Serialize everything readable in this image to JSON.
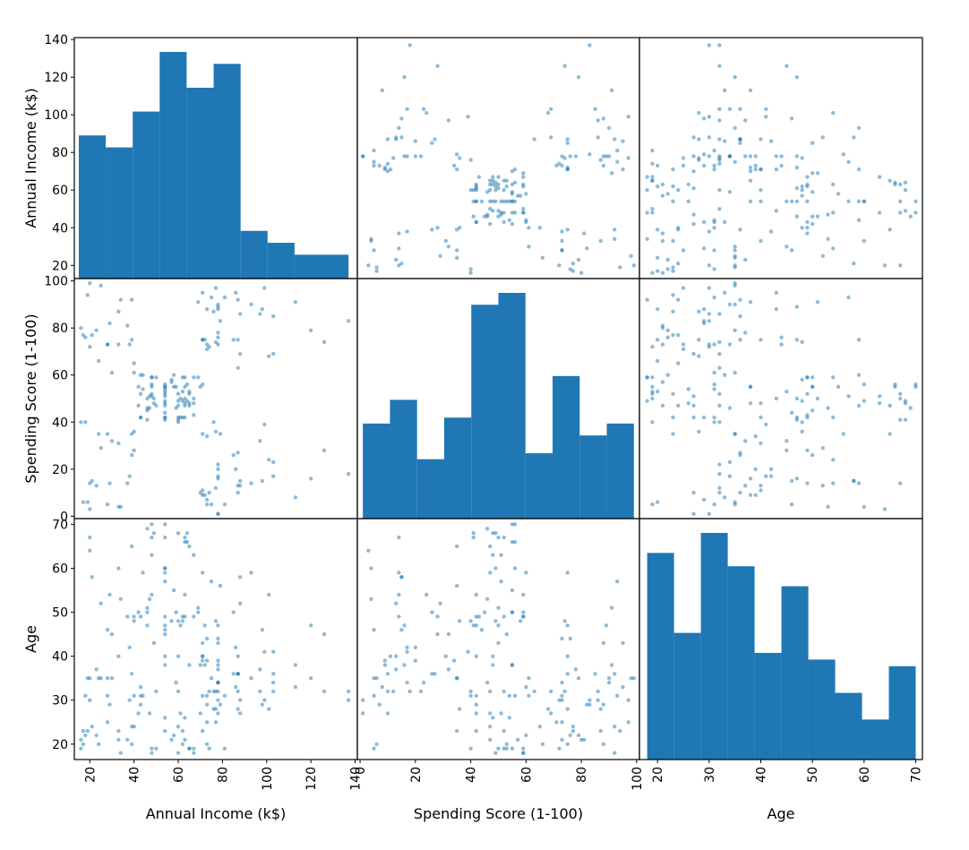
{
  "chart_data": {
    "type": "scatter_matrix",
    "variables": [
      {
        "label": "Annual Income (k$)",
        "range": [
          13,
          141
        ],
        "ticks": [
          20,
          40,
          60,
          80,
          100,
          120,
          140
        ]
      },
      {
        "label": "Spending Score (1-100)",
        "range": [
          -1,
          101
        ],
        "ticks": [
          0,
          20,
          40,
          60,
          80,
          100
        ]
      },
      {
        "label": "Age",
        "range": [
          16.5,
          71.3
        ],
        "ticks": [
          20,
          30,
          40,
          50,
          60,
          70
        ]
      }
    ],
    "histograms": {
      "Annual Income (k$)": {
        "bin_edges": [
          15,
          27.2,
          39.4,
          51.6,
          63.8,
          76,
          88.2,
          100.4,
          112.6,
          124.8,
          137
        ],
        "counts": [
          24,
          22,
          28,
          38,
          32,
          36,
          8,
          6,
          4,
          4
        ]
      },
      "Spending Score (1-100)": {
        "bin_edges": [
          1,
          10.8,
          20.6,
          30.4,
          40.2,
          50,
          59.8,
          69.6,
          79.4,
          89.2,
          99
        ],
        "counts": [
          16,
          20,
          10,
          17,
          36,
          38,
          11,
          24,
          14,
          16
        ]
      },
      "Age": {
        "bin_edges": [
          18,
          23.2,
          28.4,
          33.6,
          38.8,
          44,
          49.2,
          54.4,
          59.6,
          64.8,
          70
        ],
        "counts": [
          31,
          19,
          34,
          29,
          16,
          26,
          15,
          10,
          6,
          14
        ]
      }
    },
    "points": [
      [
        16,
        40,
        19
      ],
      [
        16,
        80,
        21
      ],
      [
        17,
        6,
        20
      ],
      [
        17,
        77,
        23
      ],
      [
        18,
        40,
        31
      ],
      [
        18,
        76,
        22
      ],
      [
        19,
        6,
        35
      ],
      [
        19,
        94,
        23
      ],
      [
        20,
        3,
        64
      ],
      [
        20,
        72,
        30
      ],
      [
        20,
        14,
        67
      ],
      [
        20,
        99,
        35
      ],
      [
        21,
        15,
        58
      ],
      [
        21,
        77,
        24
      ],
      [
        23,
        13,
        37
      ],
      [
        23,
        79,
        22
      ],
      [
        24,
        35,
        35
      ],
      [
        24,
        66,
        20
      ],
      [
        25,
        29,
        52
      ],
      [
        25,
        98,
        35
      ],
      [
        28,
        35,
        35
      ],
      [
        28,
        73,
        25
      ],
      [
        28,
        5,
        46
      ],
      [
        28,
        73,
        31
      ],
      [
        29,
        14,
        54
      ],
      [
        29,
        82,
        29
      ],
      [
        30,
        32,
        45
      ],
      [
        30,
        61,
        35
      ],
      [
        33,
        31,
        40
      ],
      [
        33,
        87,
        23
      ],
      [
        33,
        4,
        60
      ],
      [
        33,
        73,
        21
      ],
      [
        34,
        4,
        53
      ],
      [
        34,
        92,
        18
      ],
      [
        37,
        14,
        49
      ],
      [
        37,
        81,
        21
      ],
      [
        38,
        17,
        42
      ],
      [
        38,
        73,
        30
      ],
      [
        39,
        26,
        36
      ],
      [
        39,
        75,
        20
      ],
      [
        39,
        35,
        65
      ],
      [
        39,
        92,
        24
      ],
      [
        40,
        36,
        48
      ],
      [
        40,
        61,
        31
      ],
      [
        40,
        28,
        49
      ],
      [
        40,
        65,
        24
      ],
      [
        42,
        55,
        50
      ],
      [
        42,
        47,
        27
      ],
      [
        43,
        42,
        29
      ],
      [
        43,
        42,
        31
      ],
      [
        43,
        52,
        49
      ],
      [
        43,
        60,
        33
      ],
      [
        44,
        54,
        31
      ],
      [
        44,
        60,
        59
      ],
      [
        46,
        45,
        50
      ],
      [
        46,
        41,
        47
      ],
      [
        46,
        50,
        51
      ],
      [
        46,
        46,
        69
      ],
      [
        47,
        51,
        27
      ],
      [
        47,
        46,
        53
      ],
      [
        48,
        56,
        70
      ],
      [
        48,
        55,
        19
      ],
      [
        48,
        52,
        67
      ],
      [
        48,
        59,
        54
      ],
      [
        48,
        51,
        63
      ],
      [
        48,
        59,
        18
      ],
      [
        49,
        50,
        43
      ],
      [
        49,
        48,
        68
      ],
      [
        50,
        59,
        19
      ],
      [
        50,
        47,
        32
      ],
      [
        54,
        55,
        70
      ],
      [
        54,
        42,
        47
      ],
      [
        54,
        49,
        60
      ],
      [
        54,
        56,
        60
      ],
      [
        54,
        47,
        59
      ],
      [
        54,
        54,
        26
      ],
      [
        54,
        53,
        45
      ],
      [
        54,
        48,
        40
      ],
      [
        54,
        52,
        23
      ],
      [
        54,
        42,
        49
      ],
      [
        54,
        51,
        57
      ],
      [
        54,
        55,
        38
      ],
      [
        54,
        41,
        67
      ],
      [
        54,
        44,
        46
      ],
      [
        57,
        57,
        21
      ],
      [
        57,
        58,
        48
      ],
      [
        58,
        55,
        55
      ],
      [
        58,
        60,
        22
      ],
      [
        59,
        46,
        34
      ],
      [
        59,
        55,
        50
      ],
      [
        60,
        41,
        68
      ],
      [
        60,
        49,
        18
      ],
      [
        60,
        40,
        48
      ],
      [
        60,
        42,
        40
      ],
      [
        60,
        52,
        32
      ],
      [
        60,
        47,
        24
      ],
      [
        61,
        50,
        47
      ],
      [
        61,
        42,
        27
      ],
      [
        62,
        49,
        48
      ],
      [
        62,
        53,
        20
      ],
      [
        62,
        42,
        23
      ],
      [
        62,
        59,
        49
      ],
      [
        63,
        50,
        67
      ],
      [
        63,
        48,
        26
      ],
      [
        63,
        59,
        49
      ],
      [
        63,
        47,
        21
      ],
      [
        63,
        55,
        66
      ],
      [
        63,
        42,
        54
      ],
      [
        64,
        49,
        68
      ],
      [
        64,
        56,
        66
      ],
      [
        65,
        47,
        65
      ],
      [
        65,
        53,
        19
      ],
      [
        65,
        48,
        38
      ],
      [
        65,
        52,
        19
      ],
      [
        67,
        59,
        18
      ],
      [
        67,
        50,
        19
      ],
      [
        67,
        48,
        63
      ],
      [
        67,
        43,
        49
      ],
      [
        69,
        91,
        51
      ],
      [
        69,
        59,
        50
      ],
      [
        70,
        10,
        27
      ],
      [
        70,
        55,
        38
      ],
      [
        71,
        75,
        40
      ],
      [
        71,
        9,
        39
      ],
      [
        71,
        35,
        23
      ],
      [
        71,
        56,
        31
      ],
      [
        71,
        95,
        43
      ],
      [
        71,
        11,
        40
      ],
      [
        71,
        75,
        59
      ],
      [
        72,
        9,
        38
      ],
      [
        72,
        75,
        47
      ],
      [
        73,
        34,
        39
      ],
      [
        73,
        71,
        25
      ],
      [
        73,
        5,
        31
      ],
      [
        73,
        88,
        20
      ],
      [
        73,
        7,
        29
      ],
      [
        73,
        73,
        44
      ],
      [
        74,
        10,
        32
      ],
      [
        74,
        72,
        19
      ],
      [
        75,
        5,
        35
      ],
      [
        75,
        93,
        57
      ],
      [
        76,
        40,
        32
      ],
      [
        76,
        87,
        28
      ],
      [
        77,
        12,
        32
      ],
      [
        77,
        97,
        25
      ],
      [
        77,
        36,
        28
      ],
      [
        77,
        74,
        48
      ],
      [
        78,
        22,
        32
      ],
      [
        78,
        90,
        34
      ],
      [
        78,
        17,
        34
      ],
      [
        78,
        88,
        43
      ],
      [
        78,
        20,
        39
      ],
      [
        78,
        76,
        44
      ],
      [
        78,
        16,
        38
      ],
      [
        78,
        89,
        47
      ],
      [
        78,
        1,
        27
      ],
      [
        78,
        78,
        37
      ],
      [
        78,
        1,
        30
      ],
      [
        78,
        73,
        34
      ],
      [
        79,
        35,
        56
      ],
      [
        79,
        83,
        29
      ],
      [
        81,
        5,
        19
      ],
      [
        81,
        93,
        31
      ],
      [
        85,
        26,
        50
      ],
      [
        85,
        75,
        36
      ],
      [
        86,
        20,
        42
      ],
      [
        86,
        95,
        33
      ],
      [
        87,
        27,
        36
      ],
      [
        87,
        63,
        32
      ],
      [
        87,
        13,
        40
      ],
      [
        87,
        75,
        28
      ],
      [
        87,
        10,
        36
      ],
      [
        87,
        92,
        36
      ],
      [
        88,
        13,
        52
      ],
      [
        88,
        86,
        30
      ],
      [
        88,
        15,
        58
      ],
      [
        88,
        69,
        27
      ],
      [
        93,
        14,
        59
      ],
      [
        93,
        90,
        35
      ],
      [
        97,
        32,
        37
      ],
      [
        97,
        86,
        32
      ],
      [
        98,
        15,
        46
      ],
      [
        98,
        88,
        29
      ],
      [
        99,
        39,
        41
      ],
      [
        99,
        97,
        30
      ],
      [
        101,
        24,
        54
      ],
      [
        101,
        68,
        28
      ],
      [
        103,
        17,
        41
      ],
      [
        103,
        85,
        36
      ],
      [
        103,
        23,
        34
      ],
      [
        103,
        69,
        32
      ],
      [
        113,
        8,
        33
      ],
      [
        113,
        91,
        38
      ],
      [
        120,
        16,
        47
      ],
      [
        120,
        79,
        35
      ],
      [
        126,
        28,
        45
      ],
      [
        126,
        74,
        32
      ],
      [
        137,
        18,
        32
      ],
      [
        137,
        83,
        30
      ]
    ],
    "colors": {
      "histogram": "#1f77b4",
      "points": "#1f77b4",
      "frame": "#000000"
    },
    "grid": false,
    "legend": false
  }
}
